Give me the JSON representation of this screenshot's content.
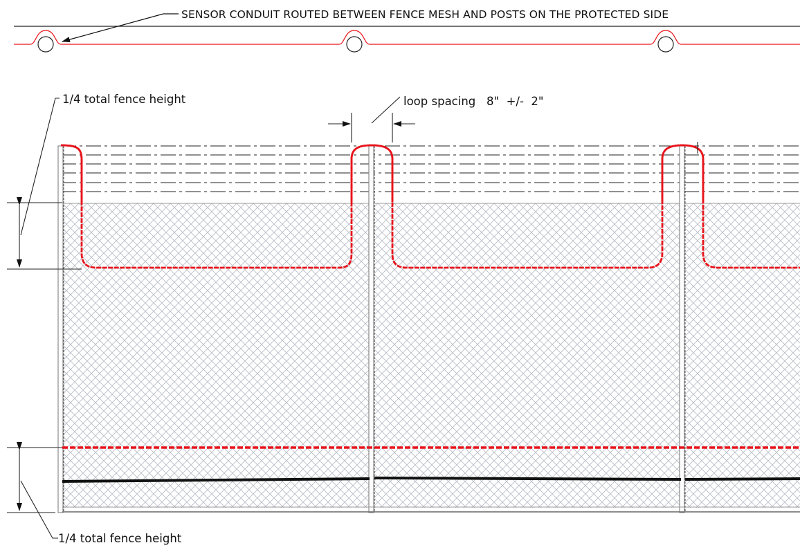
{
  "labels": {
    "conduit_callout": "SENSOR CONDUIT ROUTED BETWEEN FENCE MESH AND POSTS ON THE PROTECTED SIDE",
    "upper_dimension": "1/4 total fence height",
    "loop_spacing": "loop spacing   8\"  +/-  2\"",
    "lower_dimension": "1/4 total fence height"
  },
  "colors": {
    "sensor_cable": "#e8141b",
    "mesh": "#b9bcc4",
    "line": "#222222",
    "post": "#8a8a8a"
  }
}
